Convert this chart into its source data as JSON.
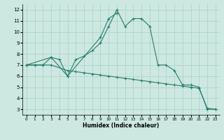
{
  "xlabel": "Humidex (Indice chaleur)",
  "line1_x": [
    0,
    1,
    2,
    3,
    4,
    5,
    6,
    7,
    8,
    9,
    10,
    11,
    12,
    13,
    14,
    15,
    16,
    17,
    18,
    19,
    20,
    21,
    22,
    23
  ],
  "line1_y": [
    7,
    7,
    7,
    7.7,
    7.5,
    6,
    7.5,
    7.8,
    8.3,
    9,
    10.5,
    12,
    10.5,
    11.2,
    11.2,
    10.5,
    7,
    7,
    6.5,
    5.2,
    5.2,
    5,
    3,
    3
  ],
  "line2_x": [
    0,
    1,
    2,
    3,
    5,
    6,
    7,
    8,
    9,
    10,
    11,
    12,
    13,
    14,
    15,
    16,
    17,
    18,
    19,
    20,
    21,
    22,
    23
  ],
  "line2_y": [
    7,
    7,
    7,
    7,
    6.5,
    6.4,
    6.3,
    6.2,
    6.1,
    6.0,
    5.9,
    5.8,
    5.7,
    5.6,
    5.5,
    5.4,
    5.3,
    5.2,
    5.1,
    5.0,
    4.9,
    3.1,
    3.0
  ],
  "line3_x": [
    0,
    3,
    5,
    9,
    10,
    11
  ],
  "line3_y": [
    7,
    7.7,
    6,
    9.5,
    11.2,
    11.7
  ],
  "color": "#2a7d6e",
  "bg_color": "#cce8e0",
  "grid_color": "#aacfc8",
  "xlim": [
    -0.5,
    23.5
  ],
  "ylim": [
    2.5,
    12.5
  ],
  "yticks": [
    3,
    4,
    5,
    6,
    7,
    8,
    9,
    10,
    11,
    12
  ],
  "xticks": [
    0,
    1,
    2,
    3,
    4,
    5,
    6,
    7,
    8,
    9,
    10,
    11,
    12,
    13,
    14,
    15,
    16,
    17,
    18,
    19,
    20,
    21,
    22,
    23
  ]
}
